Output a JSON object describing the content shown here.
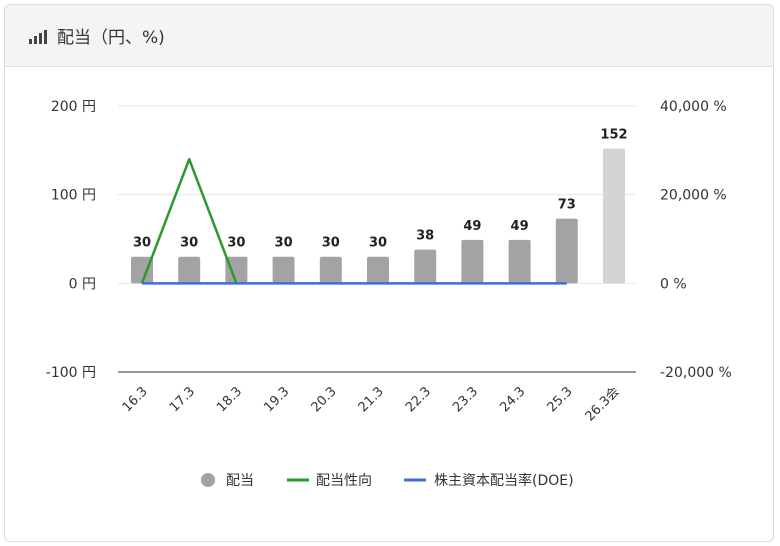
{
  "header": {
    "title": "配当（円、%)",
    "icon": "signal-bars-icon"
  },
  "chart_data": {
    "type": "bar+line",
    "categories": [
      "16.3",
      "17.3",
      "18.3",
      "19.3",
      "20.3",
      "21.3",
      "22.3",
      "23.3",
      "24.3",
      "25.3",
      "26.3会"
    ],
    "y_left": {
      "min": -100,
      "max": 200,
      "ticks": [
        "200 円",
        "100 円",
        "0 円",
        "-100 円"
      ],
      "tick_values": [
        200,
        100,
        0,
        -100
      ]
    },
    "y_right": {
      "min": -20000,
      "max": 40000,
      "ticks": [
        "40,000 %",
        "20,000 %",
        "0 %",
        "-20,000 %"
      ],
      "tick_values": [
        40000,
        20000,
        0,
        -20000
      ]
    },
    "series": [
      {
        "name": "配当",
        "type": "bar",
        "axis": "left",
        "values": [
          30,
          30,
          30,
          30,
          30,
          30,
          38,
          49,
          49,
          73,
          152
        ],
        "labels": [
          "30",
          "30",
          "30",
          "30",
          "30",
          "30",
          "38",
          "49",
          "49",
          "73",
          "152"
        ],
        "color": "#a3a3a3",
        "forecast_color": "#d4d4d4",
        "forecast_index": 10
      },
      {
        "name": "配当性向",
        "type": "line",
        "axis": "right",
        "values": [
          0,
          28000,
          0,
          null,
          null,
          null,
          null,
          null,
          null,
          null,
          null
        ],
        "color": "#2a9a2a"
      },
      {
        "name": "株主資本配当率(DOE)",
        "type": "line",
        "axis": "right",
        "values": [
          0,
          0,
          0,
          0,
          0,
          0,
          0,
          0,
          0,
          0,
          null
        ],
        "color": "#3b6fd6"
      }
    ],
    "legend": [
      "配当",
      "配当性向",
      "株主資本配当率(DOE)"
    ],
    "legend_position": "bottom"
  }
}
